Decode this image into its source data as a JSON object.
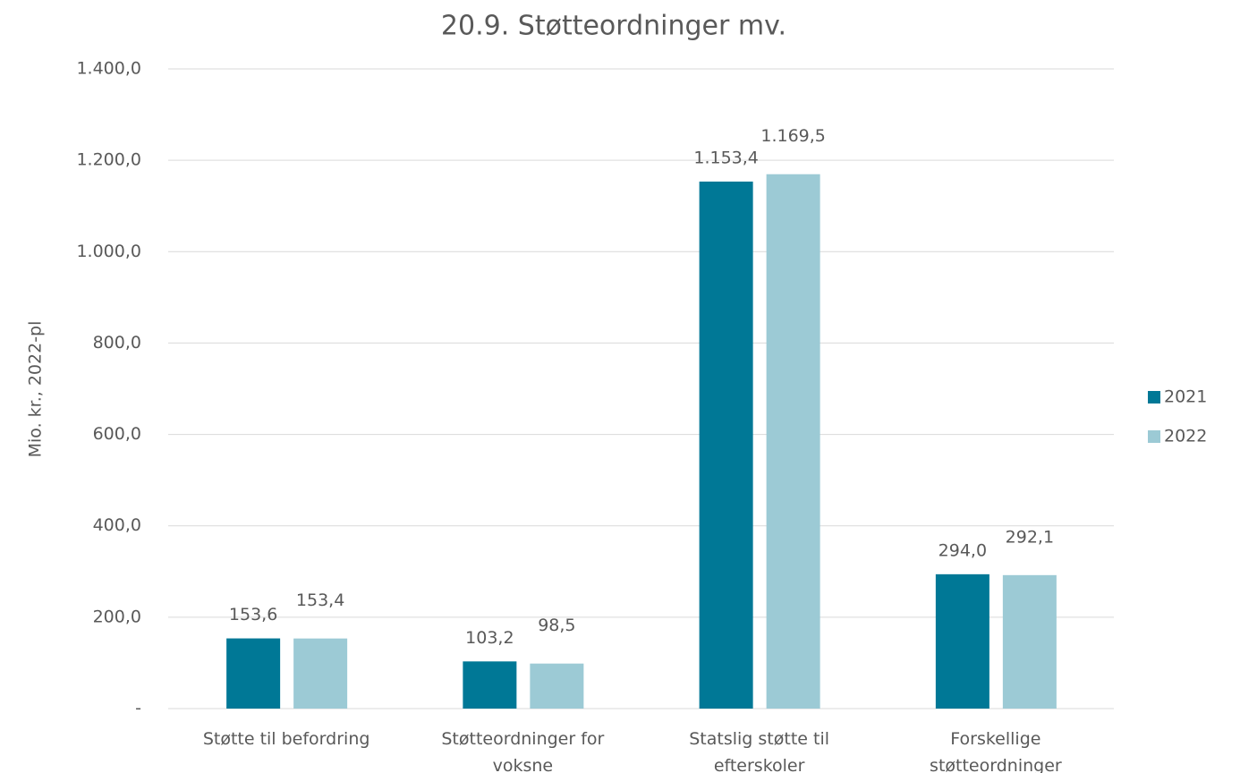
{
  "chart_data": {
    "type": "bar",
    "title": "20.9. Støtteordninger mv.",
    "y_label": "Mio. kr., 2022-pl",
    "categories": [
      "Støtte til befordring",
      "Støtteordninger for voksne",
      "Statslig støtte til efterskoler",
      "Forskellige støtteordninger"
    ],
    "series": [
      {
        "name": "2021",
        "color": "#007896",
        "values": [
          153.6,
          103.2,
          1153.4,
          294.0
        ],
        "value_labels": [
          "153,6",
          "103,2",
          "1.153,4",
          "294,0"
        ]
      },
      {
        "name": "2022",
        "color": "#9ccad5",
        "values": [
          153.4,
          98.5,
          1169.5,
          292.1
        ],
        "value_labels": [
          "153,4",
          "98,5",
          "1.169,5",
          "292,1"
        ]
      }
    ],
    "ylim": [
      0,
      1400
    ],
    "yticks": [
      {
        "value": 0,
        "label": "-"
      },
      {
        "value": 200,
        "label": "200,0"
      },
      {
        "value": 400,
        "label": "400,0"
      },
      {
        "value": 600,
        "label": "600,0"
      },
      {
        "value": 800,
        "label": "800,0"
      },
      {
        "value": 1000,
        "label": "1.000,0"
      },
      {
        "value": 1200,
        "label": "1.200,0"
      },
      {
        "value": 1400,
        "label": "1.400,0"
      }
    ],
    "grid": true,
    "legend": "right"
  }
}
